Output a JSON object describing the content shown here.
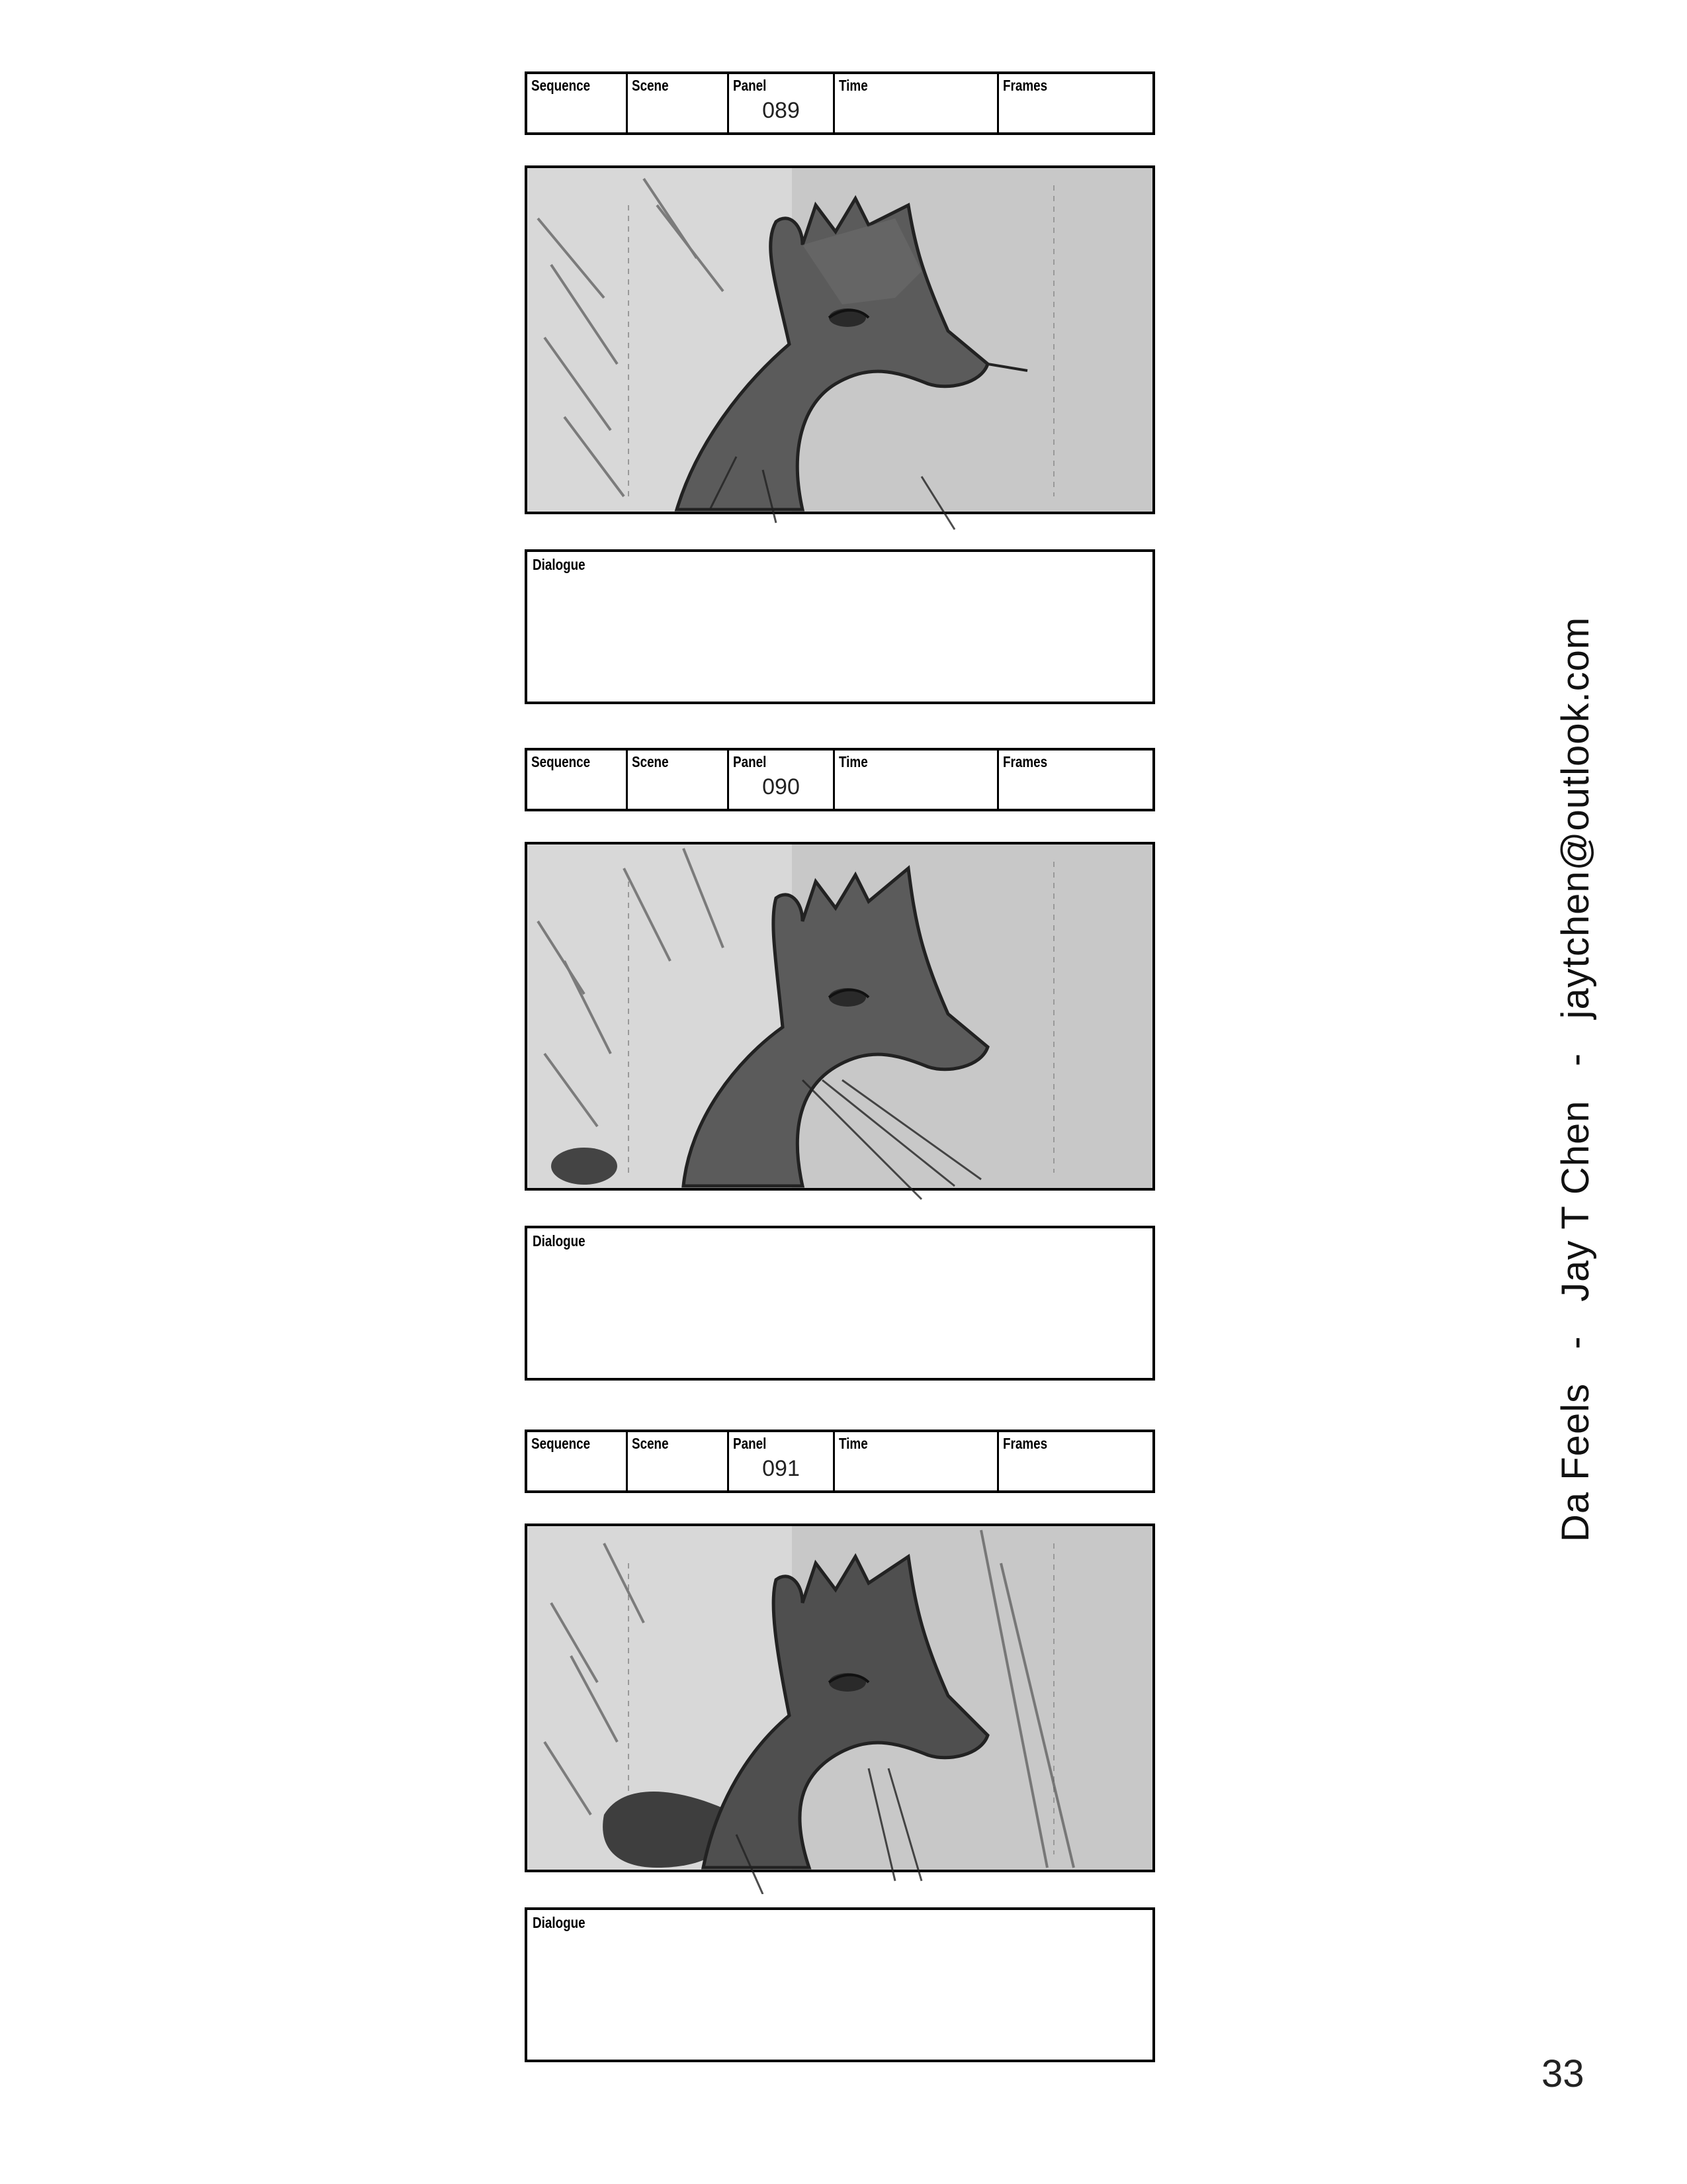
{
  "panels": [
    {
      "labels": {
        "sequence": "Sequence",
        "scene": "Scene",
        "panel": "Panel",
        "time": "Time",
        "frames": "Frames"
      },
      "panel_number": "089",
      "image_description": "giraffe-head-sketch",
      "dialogue_label": "Dialogue"
    },
    {
      "labels": {
        "sequence": "Sequence",
        "scene": "Scene",
        "panel": "Panel",
        "time": "Time",
        "frames": "Frames"
      },
      "panel_number": "090",
      "image_description": "giraffe-head-sketch",
      "dialogue_label": "Dialogue"
    },
    {
      "labels": {
        "sequence": "Sequence",
        "scene": "Scene",
        "panel": "Panel",
        "time": "Time",
        "frames": "Frames"
      },
      "panel_number": "091",
      "image_description": "giraffe-head-sketch",
      "dialogue_label": "Dialogue"
    }
  ],
  "side_caption": "Da Feels   -   Jay T Chen   -   jaytchen@outlook.com",
  "page_number": "33"
}
